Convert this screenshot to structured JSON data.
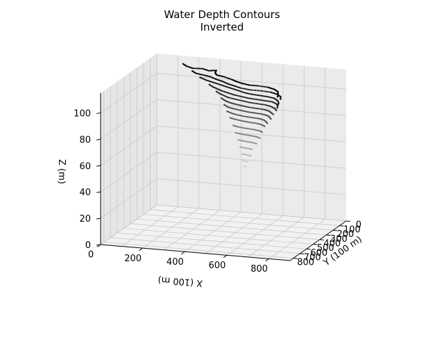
{
  "chart_data": {
    "type": "scatter",
    "projection": "3d",
    "title": "Water Depth Contours",
    "subtitle": "Inverted",
    "xlabel": "X (100 m)",
    "ylabel": "Y (100 m)",
    "zlabel": "Z (m)",
    "x_ticks": [
      0,
      200,
      400,
      600,
      800
    ],
    "y_ticks": [
      0,
      100,
      200,
      300,
      400,
      500,
      600,
      700,
      800
    ],
    "z_ticks": [
      0,
      20,
      40,
      60,
      80,
      100
    ],
    "xlim": [
      0,
      900
    ],
    "ylim": [
      0,
      850
    ],
    "zlim": [
      0,
      115
    ],
    "grid": true,
    "colormap": "grayscale (dark = shallow, light = deep)",
    "contours": [
      {
        "z": 112,
        "points": [
          [
            150,
            80
          ],
          [
            180,
            120
          ],
          [
            220,
            150
          ],
          [
            260,
            140
          ],
          [
            300,
            170
          ],
          [
            330,
            150
          ],
          [
            340,
            200
          ],
          [
            360,
            240
          ],
          [
            400,
            260
          ],
          [
            450,
            300
          ],
          [
            480,
            330
          ],
          [
            520,
            360
          ],
          [
            560,
            380
          ],
          [
            600,
            380
          ],
          [
            650,
            390
          ],
          [
            690,
            420
          ],
          [
            720,
            460
          ],
          [
            740,
            520
          ],
          [
            750,
            560
          ]
        ]
      },
      {
        "z": 108,
        "points": [
          [
            200,
            100
          ],
          [
            230,
            140
          ],
          [
            270,
            160
          ],
          [
            310,
            180
          ],
          [
            350,
            220
          ],
          [
            390,
            250
          ],
          [
            430,
            290
          ],
          [
            470,
            320
          ],
          [
            510,
            350
          ],
          [
            560,
            370
          ],
          [
            610,
            370
          ],
          [
            660,
            380
          ],
          [
            700,
            410
          ],
          [
            730,
            450
          ],
          [
            745,
            500
          ]
        ]
      },
      {
        "z": 104,
        "points": [
          [
            240,
            110
          ],
          [
            280,
            150
          ],
          [
            320,
            180
          ],
          [
            360,
            210
          ],
          [
            400,
            240
          ],
          [
            440,
            270
          ],
          [
            480,
            300
          ],
          [
            520,
            330
          ],
          [
            560,
            350
          ],
          [
            600,
            360
          ],
          [
            640,
            370
          ],
          [
            680,
            390
          ],
          [
            710,
            430
          ],
          [
            730,
            480
          ],
          [
            740,
            530
          ]
        ]
      },
      {
        "z": 100,
        "points": [
          [
            290,
            130
          ],
          [
            320,
            170
          ],
          [
            350,
            200
          ],
          [
            380,
            230
          ],
          [
            420,
            260
          ],
          [
            460,
            290
          ],
          [
            500,
            310
          ],
          [
            540,
            330
          ],
          [
            580,
            340
          ],
          [
            620,
            350
          ],
          [
            660,
            360
          ],
          [
            690,
            390
          ],
          [
            710,
            430
          ],
          [
            720,
            470
          ]
        ]
      },
      {
        "z": 96,
        "points": [
          [
            330,
            150
          ],
          [
            360,
            190
          ],
          [
            390,
            220
          ],
          [
            420,
            250
          ],
          [
            460,
            270
          ],
          [
            500,
            290
          ],
          [
            540,
            310
          ],
          [
            580,
            320
          ],
          [
            620,
            330
          ],
          [
            650,
            350
          ],
          [
            680,
            380
          ],
          [
            700,
            420
          ]
        ]
      },
      {
        "z": 92,
        "points": [
          [
            360,
            170
          ],
          [
            390,
            210
          ],
          [
            420,
            240
          ],
          [
            450,
            260
          ],
          [
            490,
            280
          ],
          [
            530,
            300
          ],
          [
            570,
            310
          ],
          [
            610,
            320
          ],
          [
            640,
            340
          ],
          [
            660,
            370
          ],
          [
            680,
            400
          ]
        ]
      },
      {
        "z": 88,
        "points": [
          [
            380,
            190
          ],
          [
            410,
            230
          ],
          [
            440,
            250
          ],
          [
            480,
            270
          ],
          [
            520,
            290
          ],
          [
            560,
            300
          ],
          [
            600,
            310
          ],
          [
            630,
            330
          ],
          [
            650,
            360
          ],
          [
            665,
            390
          ]
        ]
      },
      {
        "z": 84,
        "points": [
          [
            400,
            210
          ],
          [
            430,
            240
          ],
          [
            460,
            260
          ],
          [
            500,
            280
          ],
          [
            540,
            290
          ],
          [
            580,
            300
          ],
          [
            610,
            320
          ],
          [
            630,
            350
          ],
          [
            645,
            380
          ]
        ]
      },
      {
        "z": 80,
        "points": [
          [
            420,
            230
          ],
          [
            450,
            250
          ],
          [
            490,
            270
          ],
          [
            530,
            285
          ],
          [
            570,
            295
          ],
          [
            600,
            315
          ],
          [
            620,
            340
          ]
        ]
      },
      {
        "z": 75,
        "points": [
          [
            440,
            245
          ],
          [
            470,
            265
          ],
          [
            510,
            280
          ],
          [
            550,
            290
          ],
          [
            585,
            305
          ],
          [
            605,
            330
          ]
        ]
      },
      {
        "z": 70,
        "points": [
          [
            455,
            255
          ],
          [
            490,
            272
          ],
          [
            530,
            284
          ],
          [
            565,
            297
          ],
          [
            590,
            318
          ]
        ]
      },
      {
        "z": 65,
        "points": [
          [
            470,
            262
          ],
          [
            505,
            277
          ],
          [
            540,
            288
          ],
          [
            570,
            305
          ]
        ]
      },
      {
        "z": 60,
        "points": [
          [
            480,
            268
          ],
          [
            515,
            281
          ],
          [
            545,
            293
          ]
        ]
      },
      {
        "z": 55,
        "points": [
          [
            490,
            272
          ],
          [
            520,
            284
          ],
          [
            540,
            295
          ]
        ]
      },
      {
        "z": 50,
        "points": [
          [
            495,
            276
          ],
          [
            522,
            286
          ]
        ]
      },
      {
        "z": 46,
        "points": [
          [
            500,
            279
          ],
          [
            518,
            287
          ]
        ]
      }
    ]
  }
}
